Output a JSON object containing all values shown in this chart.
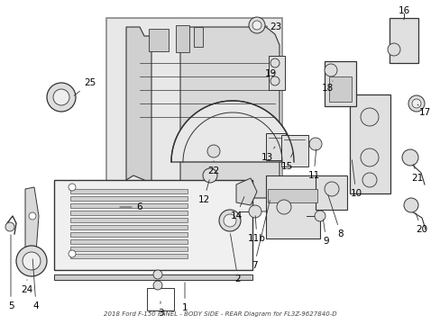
{
  "title": "2018 Ford F-150 PANEL - BODY SIDE - REAR Diagram for FL3Z-9627840-D",
  "bg_color": "#ffffff",
  "fig_width": 4.89,
  "fig_height": 3.6,
  "dpi": 100,
  "lc": "#333333",
  "tc": "#000000",
  "fs": 7.5,
  "box_border": "#888888",
  "box_fill": "#eeeeee",
  "part_stroke": "#333333",
  "part_fill": "#f5f5f5",
  "part_fill2": "#dddddd",
  "anno_lw": 0.6
}
